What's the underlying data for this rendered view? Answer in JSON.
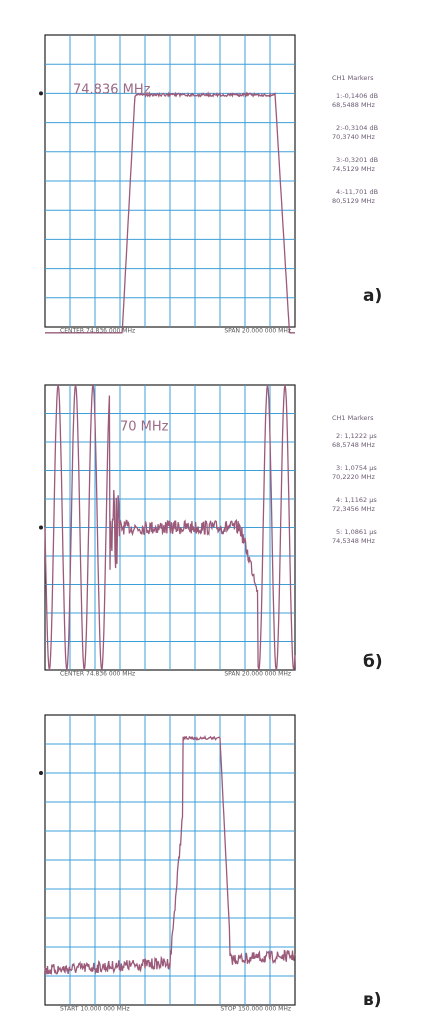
{
  "panels": [
    {
      "label": "а)",
      "note": "74.836 MHz",
      "start": "CENTER 74.836 000 MHz",
      "stop": "SPAN 20.000 000 MHz",
      "markers_title": "CH1 Markers",
      "markers": [
        "1:-0,1406 dB",
        "68,5488 MHz",
        "2:-0,3104 dB",
        "70,3740 MHz",
        "3:-0,3201 dB",
        "74,5129 MHz",
        "4:-11,701 dB",
        "80,5129 MHz"
      ]
    },
    {
      "label": "б)",
      "note": "70 MHz",
      "start": "CENTER 74.836 000 MHz",
      "stop": "SPAN 20.000 000 MHz",
      "markers_title": "CH1 Markers",
      "markers": [
        "2: 1,1222 μs",
        "68,5748 MHz",
        "3: 1,0754 μs",
        "70,2220 MHz",
        "4: 1,1162 μs",
        "72,3456 MHz",
        "5: 1,0861 μs",
        "74,5348 MHz"
      ]
    },
    {
      "label": "в)",
      "note": "",
      "start": "START 10.000 000 MHz",
      "stop": "STOP 150.000 000 MHz",
      "markers_title": "",
      "markers": []
    }
  ]
}
